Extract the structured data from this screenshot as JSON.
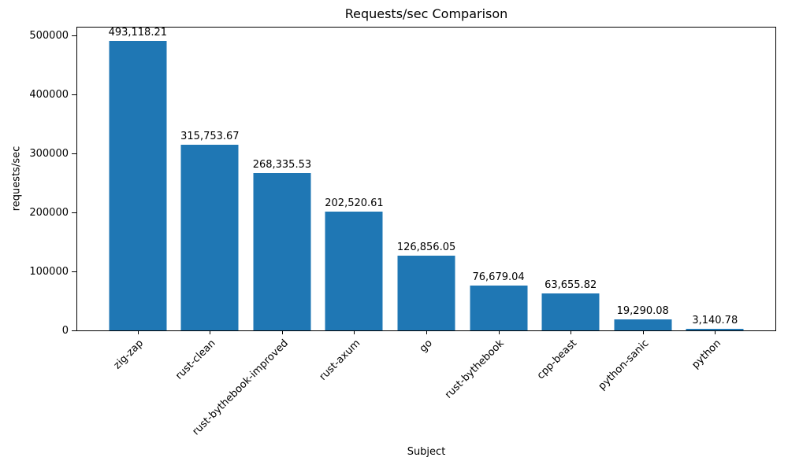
{
  "chart_data": {
    "type": "bar",
    "title": "Requests/sec Comparison",
    "xlabel": "Subject",
    "ylabel": "requests/sec",
    "categories": [
      "zig-zap",
      "rust-clean",
      "rust-bythebook-improved",
      "rust-axum",
      "go",
      "rust-bythebook",
      "cpp-beast",
      "python-sanic",
      "python"
    ],
    "values": [
      493118.21,
      315753.67,
      268335.53,
      202520.61,
      126856.05,
      76679.04,
      63655.82,
      19290.08,
      3140.78
    ],
    "bar_labels": [
      "493,118.21",
      "315,753.67",
      "268,335.53",
      "202,520.61",
      "126,856.05",
      "76,679.04",
      "63,655.82",
      "19,290.08",
      "3,140.78"
    ],
    "yticks": [
      0,
      100000,
      200000,
      300000,
      400000,
      500000
    ],
    "ytick_labels": [
      "0",
      "100000",
      "200000",
      "300000",
      "400000",
      "500000"
    ],
    "ylim": [
      0,
      516000
    ],
    "bar_color": "#1f77b4",
    "grid": false,
    "legend_position": "none"
  }
}
